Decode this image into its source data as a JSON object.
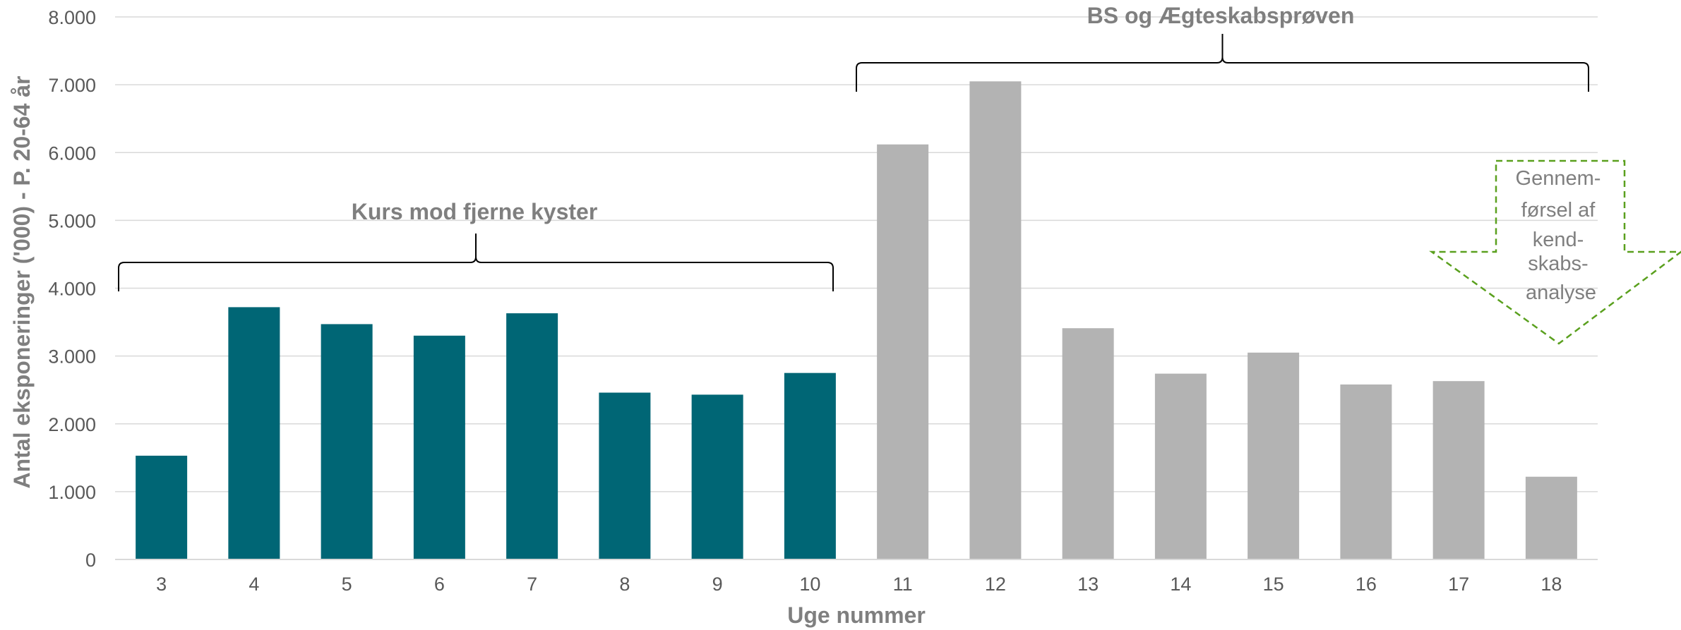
{
  "chart_data": {
    "type": "bar",
    "categories": [
      "3",
      "4",
      "5",
      "6",
      "7",
      "8",
      "9",
      "10",
      "11",
      "12",
      "13",
      "14",
      "15",
      "16",
      "17",
      "18"
    ],
    "values": [
      1530,
      3720,
      3470,
      3300,
      3630,
      2460,
      2430,
      2750,
      6120,
      7050,
      3410,
      2740,
      3050,
      2580,
      2630,
      1220
    ],
    "bar_colors": [
      "#006675",
      "#006675",
      "#006675",
      "#006675",
      "#006675",
      "#006675",
      "#006675",
      "#006675",
      "#b3b3b3",
      "#b3b3b3",
      "#b3b3b3",
      "#b3b3b3",
      "#b3b3b3",
      "#b3b3b3",
      "#b3b3b3",
      "#b3b3b3"
    ],
    "ylim": [
      0,
      8000
    ],
    "y_ticks": [
      0,
      1000,
      2000,
      3000,
      4000,
      5000,
      6000,
      7000,
      8000
    ],
    "y_tick_labels": [
      "0",
      "1.000",
      "2.000",
      "3.000",
      "4.000",
      "5.000",
      "6.000",
      "7.000",
      "8.000"
    ],
    "xlabel": "Uge nummer",
    "ylabel": "Antal eksponeringer ('000) - P. 20-64 år",
    "grid": true,
    "annotations": [
      {
        "text": "Kurs mod fjerne kyster",
        "from_category": "3",
        "to_category": "10"
      },
      {
        "text": "BS og Ægteskabsprøven",
        "from_category": "11",
        "to_category": "18"
      }
    ],
    "arrow_label_lines": [
      "Gennem-",
      "førsel af",
      "kend-",
      "skabs-",
      "analyse"
    ],
    "arrow_color": "#5aa01e",
    "gridline_color": "#d9d9d9"
  }
}
